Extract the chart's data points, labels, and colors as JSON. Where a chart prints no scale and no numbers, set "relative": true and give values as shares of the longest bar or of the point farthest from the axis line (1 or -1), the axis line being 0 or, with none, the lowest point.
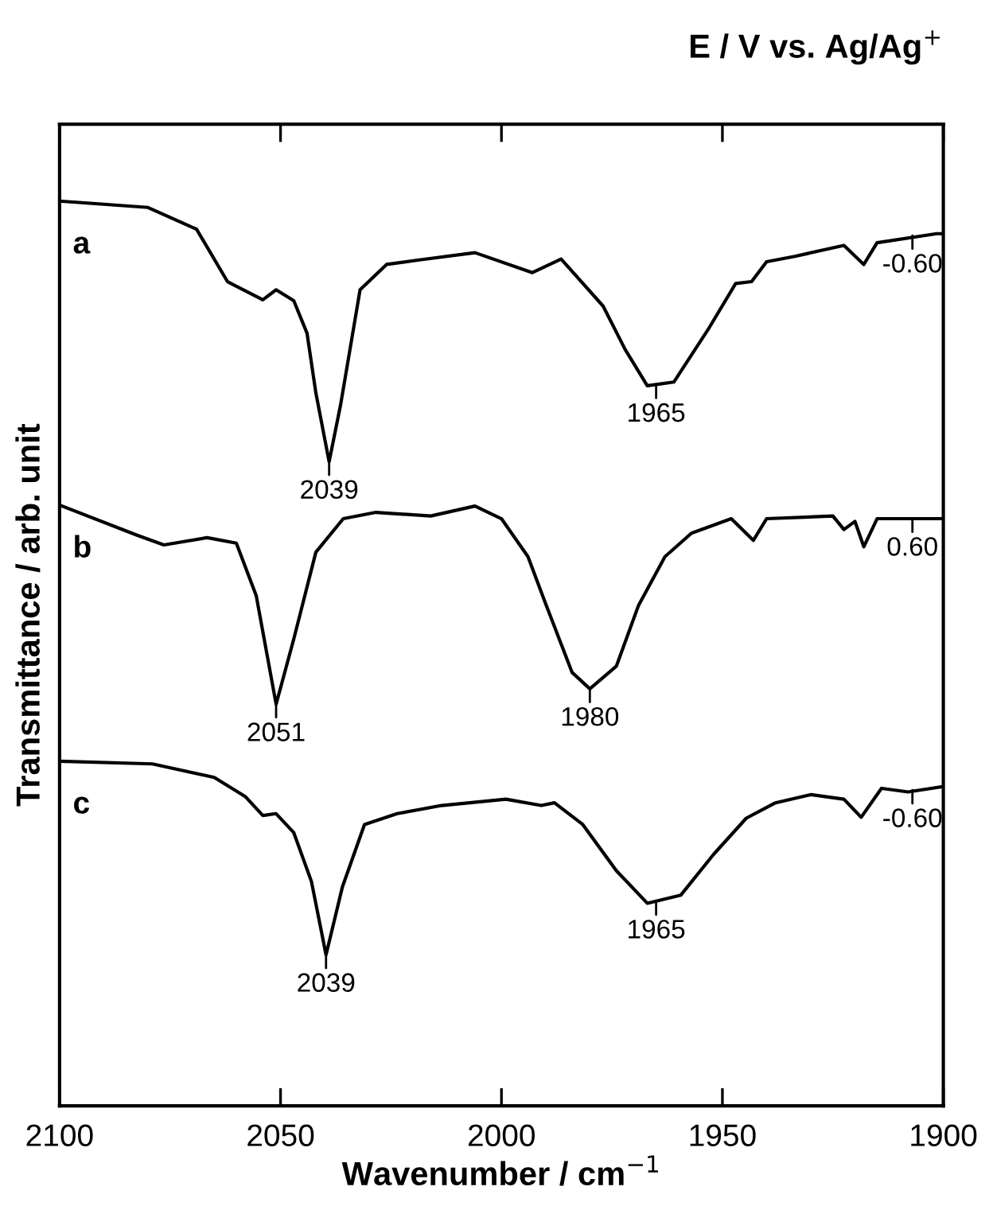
{
  "chart_data": {
    "type": "line",
    "title": "E / V vs. Ag/Ag$^{+}$",
    "xlabel": "Wavenumber / cm$^{−1}$",
    "ylabel": "Transmittance / arb. unit",
    "relative": true,
    "xlim": [
      2100,
      1900
    ],
    "xticks": [
      2100,
      2050,
      2000,
      1950,
      1900
    ],
    "grid": false,
    "legend": false,
    "marker": "none",
    "line_style": "solid",
    "series": [
      {
        "name": "a",
        "color": "#000000",
        "x": [
          2100,
          2080,
          2069,
          2062,
          2054,
          2051,
          2047,
          2044,
          2042,
          2039,
          2036.4,
          2032,
          2026,
          2018.6,
          2006,
          1993,
          1986.5,
          1977,
          1972,
          1967,
          1961,
          1953,
          1947,
          1943.4,
          1940,
          1933.6,
          1922.5,
          1918,
          1915,
          1901.5,
          1900
        ],
        "values": [
          1.0,
          0.993,
          0.969,
          0.911,
          0.891,
          0.902,
          0.89,
          0.854,
          0.788,
          0.712,
          0.775,
          0.902,
          0.93,
          0.935,
          0.943,
          0.921,
          0.936,
          0.884,
          0.836,
          0.796,
          0.8,
          0.86,
          0.909,
          0.911,
          0.933,
          0.939,
          0.951,
          0.93,
          0.954,
          0.964,
          0.964
        ]
      },
      {
        "name": "b",
        "color": "#000000",
        "x": [
          2100,
          2082.6,
          2076.4,
          2066.6,
          2060,
          2055.5,
          2051,
          2047,
          2042,
          2035.8,
          2028.4,
          2016,
          2006,
          2000,
          1994,
          1990,
          1984,
          1980,
          1974,
          1969,
          1963,
          1957,
          1948,
          1943,
          1940,
          1925,
          1922.5,
          1920,
          1918,
          1915,
          1900
        ],
        "values": [
          0.664,
          0.631,
          0.62,
          0.628,
          0.622,
          0.564,
          0.444,
          0.516,
          0.612,
          0.649,
          0.656,
          0.652,
          0.663,
          0.649,
          0.607,
          0.555,
          0.479,
          0.461,
          0.486,
          0.553,
          0.607,
          0.633,
          0.649,
          0.625,
          0.649,
          0.652,
          0.637,
          0.646,
          0.618,
          0.649,
          0.649
        ]
      },
      {
        "name": "c",
        "color": "#000000",
        "x": [
          2100,
          2079,
          2065,
          2058,
          2054,
          2051,
          2047,
          2043,
          2039.7,
          2036,
          2031,
          2023.6,
          2013.6,
          1999,
          1991,
          1988,
          1981.6,
          1974,
          1967,
          1959.4,
          1952,
          1944.6,
          1938,
          1930,
          1922.5,
          1918.6,
          1914,
          1908,
          1900
        ],
        "values": [
          0.381,
          0.378,
          0.363,
          0.342,
          0.321,
          0.323,
          0.302,
          0.248,
          0.167,
          0.242,
          0.311,
          0.323,
          0.332,
          0.339,
          0.332,
          0.335,
          0.311,
          0.26,
          0.224,
          0.233,
          0.278,
          0.318,
          0.335,
          0.344,
          0.339,
          0.319,
          0.351,
          0.347,
          0.353
        ]
      }
    ],
    "annotations": [
      {
        "text": "2039",
        "x": 2039,
        "y": 0.712
      },
      {
        "text": "1965",
        "x": 1965,
        "y": 0.797
      },
      {
        "text": "-0.60",
        "x": 1907,
        "y": 0.962
      },
      {
        "text": "2051",
        "x": 2051,
        "y": 0.444
      },
      {
        "text": "1980",
        "x": 1980,
        "y": 0.461
      },
      {
        "text": "0.60",
        "x": 1907,
        "y": 0.649
      },
      {
        "text": "2039",
        "x": 2039.7,
        "y": 0.167
      },
      {
        "text": "1965",
        "x": 1965,
        "y": 0.226
      },
      {
        "text": "-0.60",
        "x": 1907,
        "y": 0.349
      }
    ]
  }
}
